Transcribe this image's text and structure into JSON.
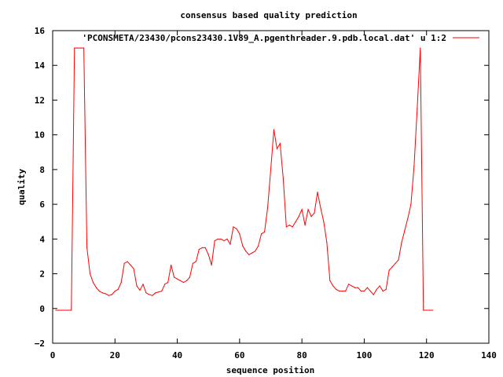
{
  "chart_data": {
    "type": "line",
    "title": "consensus based quality prediction",
    "xlabel": "sequence position",
    "ylabel": "quality",
    "xlim": [
      0,
      140
    ],
    "ylim": [
      -2,
      16
    ],
    "xticks": [
      0,
      20,
      40,
      60,
      80,
      100,
      120,
      140
    ],
    "yticks": [
      -2,
      0,
      2,
      4,
      6,
      8,
      10,
      12,
      14,
      16
    ],
    "xtick_labels": [
      "0",
      "20",
      "40",
      "60",
      "80",
      "100",
      "120",
      "140"
    ],
    "ytick_labels": [
      "−2",
      "0",
      "2",
      "4",
      "6",
      "8",
      "10",
      "12",
      "14",
      "16"
    ],
    "grid": false,
    "legend_position": "top-right",
    "series": [
      {
        "name": "'PCONSMETA/23430/pcons23430.1V89_A.pgenthreader.9.pdb.local.dat' u 1:2",
        "color": "#ff0000",
        "x": [
          1,
          2,
          3,
          4,
          5,
          6,
          7,
          8,
          9,
          10,
          11,
          12,
          13,
          14,
          15,
          16,
          17,
          18,
          19,
          20,
          21,
          22,
          23,
          24,
          25,
          26,
          27,
          28,
          29,
          30,
          31,
          32,
          33,
          34,
          35,
          36,
          37,
          38,
          39,
          40,
          41,
          42,
          43,
          44,
          45,
          46,
          47,
          48,
          49,
          50,
          51,
          52,
          53,
          54,
          55,
          56,
          57,
          58,
          59,
          60,
          61,
          62,
          63,
          64,
          65,
          66,
          67,
          68,
          69,
          70,
          71,
          72,
          73,
          74,
          75,
          76,
          77,
          78,
          79,
          80,
          81,
          82,
          83,
          84,
          85,
          86,
          87,
          88,
          89,
          90,
          91,
          92,
          93,
          94,
          95,
          96,
          97,
          98,
          99,
          100,
          101,
          102,
          103,
          104,
          105,
          106,
          107,
          108,
          109,
          110,
          111,
          112,
          113,
          114,
          115,
          116,
          117,
          118,
          119,
          120,
          121,
          122
        ],
        "values": [
          -0.1,
          -0.1,
          -0.1,
          -0.1,
          -0.1,
          -0.1,
          15,
          15,
          15,
          15,
          3.5,
          2,
          1.5,
          1.2,
          1,
          0.9,
          0.85,
          0.75,
          0.8,
          1,
          1.1,
          1.5,
          2.6,
          2.7,
          2.5,
          2.3,
          1.3,
          1.05,
          1.4,
          0.9,
          0.8,
          0.75,
          0.9,
          0.95,
          1,
          1.4,
          1.5,
          2.5,
          1.8,
          1.7,
          1.6,
          1.5,
          1.6,
          1.8,
          2.6,
          2.7,
          3.4,
          3.5,
          3.5,
          3.1,
          2.5,
          3.9,
          4,
          4,
          3.9,
          4,
          3.7,
          4.7,
          4.6,
          4.3,
          3.6,
          3.3,
          3.1,
          3.2,
          3.3,
          3.6,
          4.3,
          4.4,
          5.8,
          8,
          10.3,
          9.2,
          9.5,
          7.5,
          4.7,
          4.8,
          4.7,
          5,
          5.3,
          5.7,
          4.8,
          5.7,
          5.3,
          5.5,
          6.7,
          5.8,
          5,
          3.8,
          1.6,
          1.3,
          1.1,
          1,
          1,
          1,
          1.4,
          1.3,
          1.2,
          1.2,
          1,
          1,
          1.2,
          1,
          0.8,
          1.1,
          1.3,
          1,
          1.1,
          2.2,
          2.4,
          2.6,
          2.8,
          3.8,
          4.5,
          5.2,
          6,
          8.2,
          11.5,
          15,
          -0.1,
          -0.1,
          -0.1,
          -0.1
        ]
      }
    ]
  }
}
